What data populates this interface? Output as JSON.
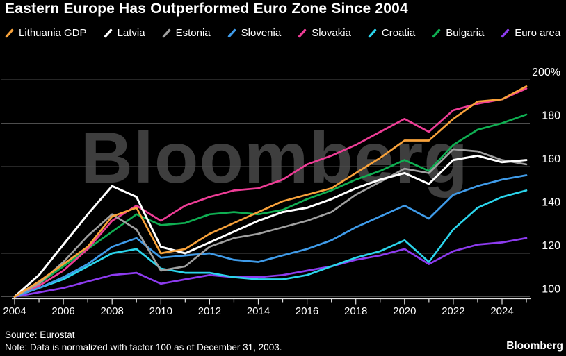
{
  "title": "Eastern Europe Has Outperformed Euro Zone Since 2004",
  "watermark": "Bloomberg",
  "source": "Source: Eurostat",
  "note": "Note: Data is normalized with factor 100 as of December 31, 2003.",
  "brand": "Bloomberg",
  "colors": {
    "background": "#000000",
    "text": "#ffffff",
    "grid": "#4d4d4d",
    "axis": "#e0e0e0",
    "watermark": "#3e3e3e"
  },
  "chart_data": {
    "type": "line",
    "title": "Eastern Europe Has Outperformed Euro Zone Since 2004",
    "xlabel": "",
    "ylabel": "",
    "grid": "horizontal",
    "legend_position": "top",
    "x": [
      2004,
      2005,
      2006,
      2007,
      2008,
      2009,
      2010,
      2011,
      2012,
      2013,
      2014,
      2015,
      2016,
      2017,
      2018,
      2019,
      2020,
      2021,
      2022,
      2023,
      2024,
      2025
    ],
    "x_tick_labels": [
      "2004",
      "2006",
      "2008",
      "2010",
      "2012",
      "2014",
      "2016",
      "2018",
      "2020",
      "2022",
      "2024"
    ],
    "ylim": [
      96,
      205
    ],
    "y_ticks": [
      {
        "value": 200,
        "label": "200%"
      },
      {
        "value": 180,
        "label": "180"
      },
      {
        "value": 160,
        "label": "160"
      },
      {
        "value": 140,
        "label": "140"
      },
      {
        "value": 120,
        "label": "120"
      },
      {
        "value": 100,
        "label": "100"
      }
    ],
    "series": [
      {
        "name": "Lithuania GDP",
        "color": "#F8A23B",
        "values": [
          100,
          107,
          115,
          123,
          137,
          141,
          120,
          122,
          129,
          134,
          139,
          144,
          147,
          150,
          157,
          164,
          172,
          172,
          182,
          190,
          191,
          197
        ]
      },
      {
        "name": "Latvia",
        "color": "#FFFFFF",
        "values": [
          100,
          110,
          124,
          138,
          151,
          146,
          123,
          120,
          125,
          130,
          135,
          139,
          141,
          145,
          150,
          154,
          157,
          152,
          163,
          165,
          162,
          163
        ]
      },
      {
        "name": "Estonia",
        "color": "#A0A0A0",
        "values": [
          100,
          106,
          116,
          128,
          138,
          131,
          112,
          114,
          123,
          127,
          129,
          132,
          135,
          139,
          147,
          153,
          159,
          157,
          168,
          167,
          163,
          161
        ]
      },
      {
        "name": "Slovenia",
        "color": "#3F9BE9",
        "values": [
          100,
          104,
          109,
          115,
          123,
          127,
          118,
          119,
          120,
          117,
          116,
          119,
          122,
          126,
          132,
          137,
          142,
          136,
          147,
          151,
          154,
          156
        ]
      },
      {
        "name": "Slovakia",
        "color": "#EE3D96",
        "values": [
          100,
          105,
          112,
          122,
          135,
          142,
          135,
          142,
          146,
          149,
          150,
          154,
          161,
          165,
          170,
          176,
          182,
          176,
          186,
          189,
          191,
          196
        ]
      },
      {
        "name": "Croatia",
        "color": "#2BD5EC",
        "values": [
          100,
          104,
          108,
          114,
          120,
          122,
          113,
          111,
          111,
          109,
          108,
          108,
          110,
          114,
          118,
          121,
          126,
          116,
          131,
          141,
          146,
          149
        ]
      },
      {
        "name": "Bulgaria",
        "color": "#0FAF52",
        "values": [
          100,
          106,
          114,
          122,
          130,
          138,
          133,
          134,
          138,
          139,
          138,
          140,
          145,
          149,
          154,
          158,
          163,
          158,
          170,
          177,
          180,
          184
        ]
      },
      {
        "name": "Euro area",
        "color": "#8D3BEF",
        "values": [
          100,
          102,
          104,
          107,
          110,
          111,
          106,
          108,
          110,
          109,
          109,
          110,
          112,
          114,
          117,
          119,
          122,
          115,
          121,
          124,
          125,
          127
        ]
      }
    ]
  }
}
